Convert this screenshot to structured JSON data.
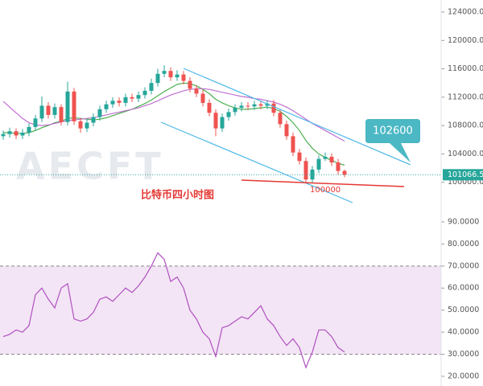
{
  "chart_data": [
    {
      "type": "candlestick",
      "watermark": "AECFT",
      "ylim": [
        96000,
        125700
      ],
      "yticks": [
        {
          "value": 100000,
          "label": "100000.0"
        },
        {
          "value": 104000,
          "label": "104000.0"
        },
        {
          "value": 108000,
          "label": "108000.0"
        },
        {
          "value": 112000,
          "label": "112000.0"
        },
        {
          "value": 116000,
          "label": "116000.0"
        },
        {
          "value": 120000,
          "label": "120000.0"
        },
        {
          "value": 124000,
          "label": "124000.0"
        }
      ],
      "up_color": "#26a69a",
      "down_color": "#ef5350",
      "open": [
        106500,
        106800,
        107200,
        106600,
        107000,
        107800,
        109000,
        110800,
        109500,
        110600,
        108500,
        112800,
        108600,
        107600,
        108400,
        109200,
        110300,
        111000,
        111500,
        111200,
        112000,
        111800,
        112300,
        112900,
        114000,
        115300,
        115700,
        114800,
        115200,
        114300,
        113200,
        112500,
        111200,
        109800,
        107600,
        109200,
        109900,
        110500,
        110800,
        110700,
        111000,
        110800,
        111100,
        109800,
        108200,
        106500,
        104200,
        103000,
        100400,
        101800,
        103300,
        103600,
        102800,
        101600
      ],
      "high": [
        107300,
        107700,
        107600,
        107500,
        108300,
        109500,
        112100,
        111300,
        111100,
        111000,
        114200,
        113300,
        109100,
        108900,
        109700,
        110800,
        111500,
        112000,
        112000,
        112500,
        112500,
        112800,
        113400,
        114600,
        116000,
        116500,
        116200,
        115800,
        115700,
        114800,
        113700,
        113000,
        111700,
        110300,
        109700,
        110400,
        111000,
        111300,
        111300,
        111500,
        111500,
        111600,
        111600,
        110300,
        108700,
        107000,
        104700,
        103500,
        102300,
        103800,
        104200,
        104100,
        103300,
        101800
      ],
      "low": [
        106000,
        106300,
        106100,
        106100,
        106500,
        107300,
        108500,
        109000,
        109000,
        108000,
        108000,
        108100,
        107000,
        107100,
        107900,
        108700,
        109800,
        110500,
        110700,
        110700,
        111300,
        111300,
        111800,
        112400,
        113500,
        114800,
        114300,
        114300,
        113800,
        112700,
        112000,
        110700,
        109300,
        106500,
        107100,
        108700,
        109400,
        110000,
        110200,
        110200,
        110300,
        110300,
        109300,
        107700,
        106000,
        103700,
        102500,
        99800,
        99900,
        101300,
        103000,
        102300,
        101100,
        100700
      ],
      "close": [
        106800,
        107200,
        106600,
        107000,
        107800,
        109000,
        110800,
        109500,
        110600,
        108500,
        112800,
        108600,
        107600,
        108400,
        109200,
        110300,
        111000,
        111500,
        111200,
        112000,
        111800,
        112300,
        112900,
        114000,
        115300,
        115700,
        114800,
        115200,
        114300,
        113200,
        112500,
        111200,
        109800,
        107600,
        109200,
        109900,
        110500,
        110800,
        110700,
        111000,
        110800,
        111100,
        109800,
        108200,
        106500,
        104200,
        103000,
        100400,
        101800,
        103300,
        103600,
        102800,
        101600,
        101066.5
      ],
      "series": [
        {
          "color": "#4caf50",
          "values": [
            107000,
            107000,
            106900,
            106900,
            107000,
            107300,
            107700,
            108000,
            108400,
            108600,
            109000,
            109100,
            109000,
            108900,
            108800,
            108900,
            109100,
            109400,
            109700,
            110000,
            110300,
            110700,
            111100,
            111600,
            112200,
            112800,
            113300,
            113800,
            114000,
            113900,
            113600,
            113100,
            112500,
            111700,
            111200,
            110800,
            110500,
            110300,
            110300,
            110400,
            110500,
            110600,
            110400,
            110000,
            109300,
            108400,
            107300,
            105900,
            104800,
            104000,
            103500,
            103100,
            102700,
            102400
          ]
        },
        {
          "color": "#c070d0",
          "values": [
            111400,
            110600,
            109800,
            109000,
            108400,
            108100,
            108000,
            108100,
            108300,
            108500,
            108700,
            108800,
            108900,
            109000,
            109100,
            109300,
            109500,
            109700,
            109900,
            110100,
            110300,
            110500,
            110800,
            111100,
            111500,
            111900,
            112300,
            112600,
            112900,
            113100,
            113200,
            113200,
            113100,
            112900,
            112700,
            112500,
            112300,
            112100,
            112000,
            111800,
            111700,
            111500,
            111300,
            111000,
            110600,
            110100,
            109500,
            108900,
            108300,
            107800,
            107300,
            106800,
            106300,
            105800
          ]
        }
      ],
      "last_price": 101066.5,
      "annotations": [
        "102600",
        "100000",
        "比特币四小时图"
      ]
    },
    {
      "type": "line",
      "color": "#b050c0",
      "ylim": [
        15.6,
        95.1
      ],
      "yticks": [
        {
          "value": 20,
          "label": "20.0000"
        },
        {
          "value": 30,
          "label": "30.0000"
        },
        {
          "value": 40,
          "label": "40.0000"
        },
        {
          "value": 50,
          "label": "50.0000"
        },
        {
          "value": 60,
          "label": "60.0000"
        },
        {
          "value": 70,
          "label": "70.0000"
        },
        {
          "value": 80,
          "label": "80.0000"
        },
        {
          "value": 90,
          "label": "90.0000"
        }
      ],
      "bands": [
        30,
        70
      ],
      "values": [
        38,
        39,
        41,
        40,
        43,
        57,
        60,
        55,
        51,
        60,
        62,
        46,
        45,
        46,
        49,
        55,
        56,
        54,
        57,
        60,
        58,
        61,
        65,
        70,
        76,
        73,
        63,
        65,
        60,
        50,
        46,
        40,
        37,
        29,
        42,
        43,
        45,
        47,
        46,
        49,
        52,
        46,
        43,
        38,
        34,
        37,
        33,
        24,
        31,
        41,
        41,
        38,
        33,
        31
      ]
    }
  ]
}
